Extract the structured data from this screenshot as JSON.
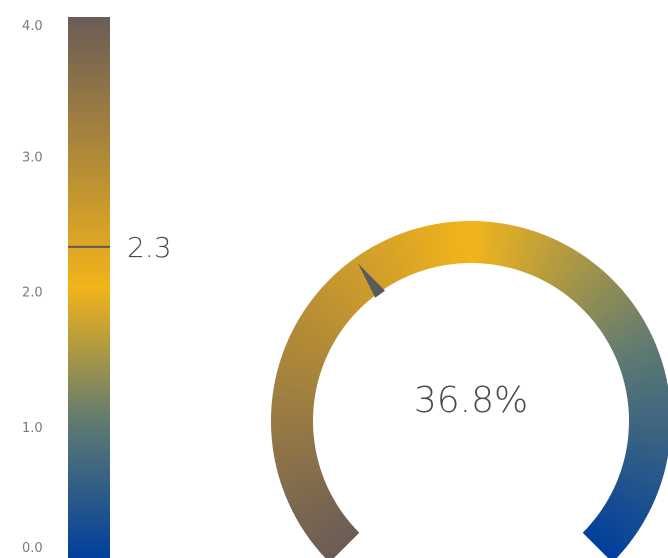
{
  "chart_data": [
    {
      "type": "linear-gauge",
      "ticks": [
        {
          "value": 4.0,
          "label": "4.0"
        },
        {
          "value": 3.0,
          "label": "3.0"
        },
        {
          "value": 2.0,
          "label": "2.0"
        },
        {
          "value": 1.0,
          "label": "1.0"
        },
        {
          "value": 0.0,
          "label": "0.0"
        }
      ],
      "range": [
        0,
        4
      ],
      "value": 2.3,
      "value_label": "2.3",
      "gradient": [
        {
          "value": 0.0,
          "color": "#003f9c"
        },
        {
          "value": 1.0,
          "color": "#5f7a72"
        },
        {
          "value": 2.0,
          "color": "#f2b41b"
        },
        {
          "value": 4.0,
          "color": "#6a5c57"
        }
      ],
      "marker_color": "#5a5a5a"
    },
    {
      "type": "radial-gauge",
      "value": 36.8,
      "value_label": "36.8%",
      "range": [
        0,
        100
      ],
      "arc_degrees": 270,
      "gradient": [
        {
          "value": 0,
          "color": "#6a5c57"
        },
        {
          "value": 50,
          "color": "#f2b41b"
        },
        {
          "value": 75,
          "color": "#5f7a72"
        },
        {
          "value": 100,
          "color": "#003f9c"
        }
      ],
      "needle_color": "#5a5a5a"
    }
  ]
}
